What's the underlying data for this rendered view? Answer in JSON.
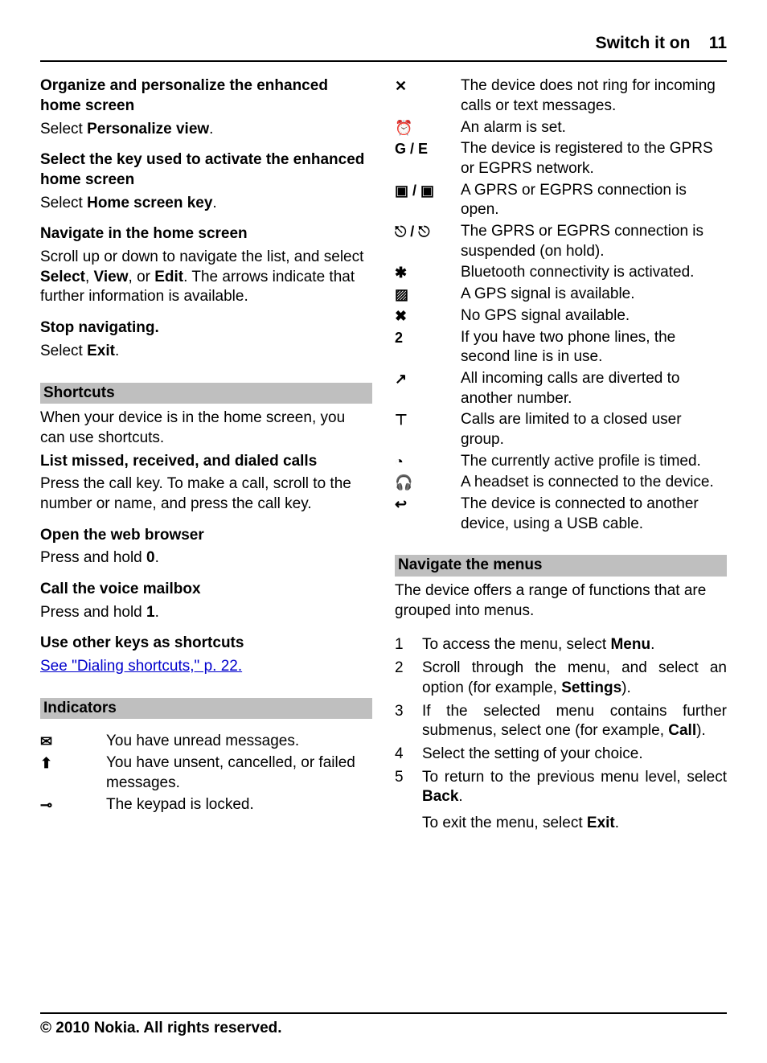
{
  "header": {
    "title": "Switch it on",
    "page": "11"
  },
  "left": {
    "sections": [
      {
        "title": "Organize and personalize the enhanced home screen",
        "body": "Select <b>Personalize view</b>."
      },
      {
        "title": "Select the key used to activate the enhanced home screen",
        "body": "Select <b>Home screen key</b>."
      },
      {
        "title": "Navigate in the home screen",
        "body": "Scroll up or down to navigate the list, and select <b>Select</b>, <b>View</b>, or <b>Edit</b>. The arrows indicate that further information is available."
      },
      {
        "title": "Stop navigating.",
        "body": "Select <b>Exit</b>."
      }
    ],
    "shortcuts_heading": "Shortcuts",
    "shortcuts_intro": "When your device is in the home screen, you can use shortcuts.",
    "shortcut_sections": [
      {
        "title": "List missed, received, and dialed calls",
        "body": "Press the call key. To make a call, scroll to the number or name, and press the call key."
      },
      {
        "title": "Open the web browser",
        "body": "Press and hold <b>0</b>."
      },
      {
        "title": "Call the voice mailbox",
        "body": "Press and hold <b>1</b>."
      },
      {
        "title": "Use other keys as shortcuts",
        "body": "<a class='link' href='#'>See \"Dialing shortcuts,\" p. 22.</a>"
      }
    ],
    "indicators_heading": "Indicators",
    "indicators_left": [
      {
        "icon": "✉",
        "desc": "You have unread messages."
      },
      {
        "icon": "⬆",
        "desc": "You have unsent, cancelled, or failed messages."
      },
      {
        "icon": "⊸",
        "desc": "The keypad is locked."
      }
    ]
  },
  "right": {
    "indicators": [
      {
        "icon": "✕",
        "desc": "The device does not ring for incoming calls or text messages."
      },
      {
        "icon": "⏰",
        "desc": "An alarm is set."
      },
      {
        "icon": "G / E",
        "desc": "The device is registered to the GPRS or EGPRS network."
      },
      {
        "icon": "▣ / ▣",
        "desc": "A GPRS or EGPRS connection is open."
      },
      {
        "icon": "⎋ / ⎋",
        "desc": "The GPRS or EGPRS connection is suspended (on hold)."
      },
      {
        "icon": "✱",
        "desc": "Bluetooth connectivity is activated."
      },
      {
        "icon": "▨",
        "desc": "A GPS signal is available."
      },
      {
        "icon": "✖",
        "desc": "No GPS signal available."
      },
      {
        "icon": "2",
        "desc": "If you have two phone lines, the second line is in use."
      },
      {
        "icon": "↗",
        "desc": "All incoming calls are diverted to another number."
      },
      {
        "icon": "⊤",
        "desc": "Calls are limited to a closed user group."
      },
      {
        "icon": "◔",
        "desc": "The currently active profile is timed."
      },
      {
        "icon": "🎧",
        "desc": "A headset is connected to the device."
      },
      {
        "icon": "↩",
        "desc": "The device is connected to another device, using a USB cable."
      }
    ],
    "nav_heading": "Navigate the menus",
    "nav_intro": "The device offers a range of functions that are grouped into menus.",
    "nav_steps": [
      {
        "n": "1",
        "body": "To access the menu, select <b>Menu</b>."
      },
      {
        "n": "2",
        "body": "Scroll through the menu, and select an option (for example, <b>Settings</b>)."
      },
      {
        "n": "3",
        "body": "If the selected menu contains further submenus, select one (for example, <b>Call</b>)."
      },
      {
        "n": "4",
        "body": "Select the setting of your choice."
      },
      {
        "n": "5",
        "body": "To return to the previous menu level, select <b>Back</b>.",
        "extra": "To exit the menu, select <b>Exit</b>."
      }
    ]
  },
  "footer": "© 2010 Nokia. All rights reserved."
}
